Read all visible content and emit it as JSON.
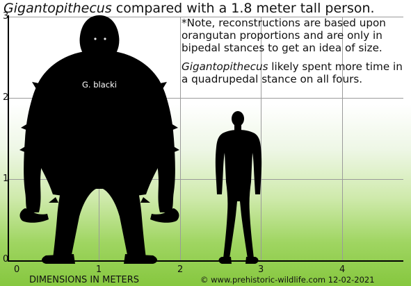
{
  "title": {
    "species": "Gigantopithecus",
    "rest": " compared with a 1.8 meter tall person."
  },
  "note": {
    "line1": "*Note, reconstructions are based upon orangutan proportions and are only in bipedal stances to get an idea of size.",
    "species": "Gigantopithecus",
    "line2_rest": " likely spent more time in a quadrupedal stance on all fours."
  },
  "axes": {
    "y_ticks": [
      "0",
      "1",
      "2",
      "3"
    ],
    "x_ticks": [
      "0",
      "1",
      "2",
      "3",
      "4"
    ],
    "xlabel": "DIMENSIONS IN METERS"
  },
  "figures": {
    "ape_label": "G. blacki"
  },
  "footer": {
    "copyright": "© www.prehistoric-wildlife.com 12-02-2021"
  },
  "colors": {
    "silhouette": "#000000",
    "grass": "#86c73f",
    "grid": "#999999"
  }
}
